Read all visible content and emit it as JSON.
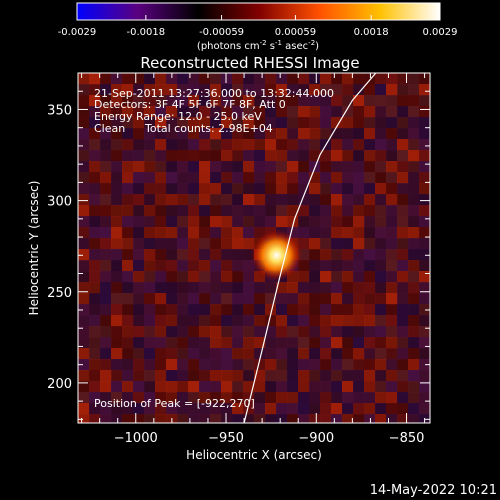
{
  "colorbar": {
    "ticks": [
      "-0.0029",
      "-0.0018",
      "-0.00059",
      "0.00059",
      "0.0018",
      "0.0029"
    ],
    "tick_values": [
      -0.0029,
      -0.0018,
      -0.00059,
      0.00059,
      0.0018,
      0.0029
    ],
    "range": [
      -0.0029,
      0.0029
    ],
    "units_prefix": "(photons cm",
    "units_exp1": "-2",
    "units_mid": " s",
    "units_exp2": "-1",
    "units_mid2": " asec",
    "units_exp3": "-2",
    "units_suffix": ")"
  },
  "chart_data": {
    "type": "heatmap",
    "title": "Reconstructed RHESSI Image",
    "xlabel": "Heliocentric X (arcsec)",
    "ylabel": "Heliocentric Y (arcsec)",
    "xlim": [
      -1032,
      -837
    ],
    "ylim": [
      178,
      370
    ],
    "x_ticks": [
      -1000,
      -950,
      -900,
      -850
    ],
    "x_tick_labels": [
      "−1000",
      "−950",
      "−900",
      "−850"
    ],
    "y_ticks": [
      200,
      250,
      300,
      350
    ],
    "y_tick_labels": [
      "200",
      "250",
      "300",
      "350"
    ],
    "peak": [
      -922,
      270
    ],
    "peak_value": 0.0029,
    "limb_points": [
      [
        -940,
        178
      ],
      [
        -930,
        218
      ],
      [
        -921,
        255
      ],
      [
        -912,
        290
      ],
      [
        -898,
        325
      ],
      [
        -880,
        355
      ],
      [
        -867,
        370
      ]
    ],
    "colormap": [
      "#0000ff",
      "#5a0080",
      "#000000",
      "#800000",
      "#ff5000",
      "#ffc000",
      "#ffffff"
    ]
  },
  "annotations": {
    "time_range": "21-Sep-2011 13:27:36.000 to 13:32:44.000",
    "detectors": "Detectors: 3F 4F 5F 6F 7F 8F, Att 0",
    "energy": "Energy Range: 12.0 - 25.0 keV",
    "clean_label": "Clean",
    "total_counts": "Total counts: 2.98E+04",
    "peak_position": "Position of Peak = [-922,270]"
  },
  "footer": {
    "timestamp": "14-May-2022 10:21"
  }
}
